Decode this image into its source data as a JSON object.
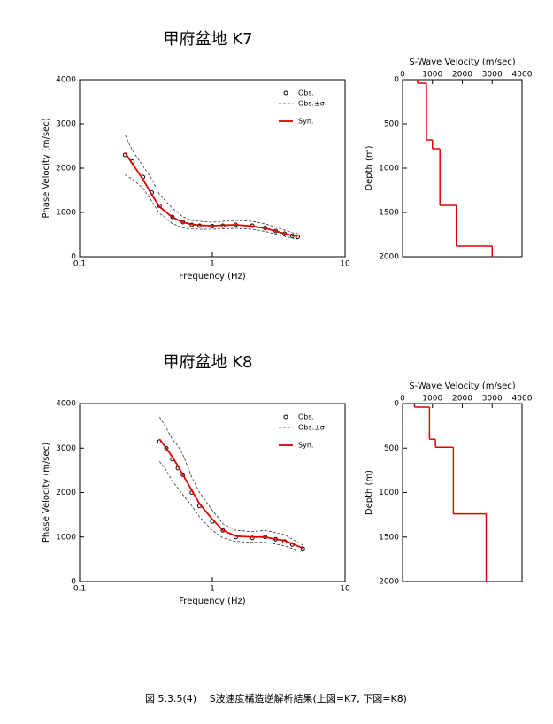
{
  "chart_data": [
    {
      "type": "line",
      "title": "甲府盆地 K7",
      "xlabel": "Frequency (Hz)",
      "ylabel": "Phase Velocity (m/sec)",
      "xscale": "log",
      "xlim": [
        0.1,
        10
      ],
      "xticks": [
        0.1,
        1,
        10
      ],
      "ylim": [
        0,
        4000
      ],
      "yticks": [
        0,
        1000,
        2000,
        3000,
        4000
      ],
      "legend": "upper right",
      "x": [
        0.22,
        0.25,
        0.3,
        0.35,
        0.4,
        0.5,
        0.6,
        0.7,
        0.8,
        1,
        1.2,
        1.5,
        2,
        2.5,
        3,
        3.5,
        4,
        4.4
      ],
      "series": [
        {
          "name": "Obs.",
          "marker": "circle",
          "color": "#000000",
          "values": [
            2300,
            2150,
            1800,
            1450,
            1150,
            900,
            780,
            720,
            700,
            690,
            700,
            720,
            700,
            650,
            580,
            520,
            470,
            450
          ]
        },
        {
          "name": "Obs.±σ",
          "dash": true,
          "color": "#333333",
          "upper": [
            2750,
            2400,
            2050,
            1750,
            1400,
            1100,
            900,
            820,
            800,
            780,
            800,
            820,
            800,
            740,
            670,
            600,
            540,
            520
          ],
          "lower": [
            1850,
            1750,
            1550,
            1250,
            980,
            750,
            650,
            630,
            620,
            620,
            630,
            640,
            620,
            570,
            510,
            460,
            420,
            400
          ]
        },
        {
          "name": "Syn.",
          "color": "#e00000",
          "values": [
            2350,
            2100,
            1750,
            1400,
            1130,
            890,
            780,
            730,
            710,
            700,
            710,
            720,
            690,
            640,
            580,
            520,
            480,
            460
          ]
        }
      ]
    },
    {
      "type": "step",
      "xlabel": "S-Wave Velocity (m/sec)",
      "ylabel": "Depth (m)",
      "x_axis_position": "top",
      "xlim": [
        0,
        4000
      ],
      "xticks": [
        0,
        1000,
        2000,
        3000,
        4000
      ],
      "ylim": [
        2000,
        0
      ],
      "yticks": [
        0,
        500,
        1000,
        1500,
        2000
      ],
      "color": "#e00000",
      "velocity": [
        500,
        800,
        1000,
        1250,
        1800,
        3000
      ],
      "top_depth": [
        0,
        40,
        680,
        780,
        1420,
        1880
      ]
    },
    {
      "type": "line",
      "title": "甲府盆地 K8",
      "xlabel": "Frequency (Hz)",
      "ylabel": "Phase Velocity (m/sec)",
      "xscale": "log",
      "xlim": [
        0.1,
        10
      ],
      "xticks": [
        0.1,
        1,
        10
      ],
      "ylim": [
        0,
        4000
      ],
      "yticks": [
        0,
        1000,
        2000,
        3000,
        4000
      ],
      "legend": "upper right",
      "x": [
        0.4,
        0.45,
        0.5,
        0.55,
        0.6,
        0.7,
        0.8,
        1,
        1.2,
        1.5,
        2,
        2.5,
        3,
        3.5,
        4,
        4.8
      ],
      "series": [
        {
          "name": "Obs.",
          "marker": "circle",
          "color": "#000000",
          "values": [
            3150,
            3000,
            2750,
            2550,
            2400,
            2000,
            1700,
            1350,
            1150,
            1000,
            980,
            1000,
            950,
            900,
            830,
            740
          ]
        },
        {
          "name": "Obs.±σ",
          "dash": true,
          "color": "#333333",
          "upper": [
            3700,
            3450,
            3200,
            3050,
            2850,
            2350,
            2000,
            1600,
            1300,
            1150,
            1120,
            1150,
            1100,
            1050,
            950,
            820
          ],
          "lower": [
            2700,
            2500,
            2250,
            2100,
            1950,
            1700,
            1450,
            1150,
            980,
            900,
            880,
            880,
            840,
            800,
            740,
            660
          ]
        },
        {
          "name": "Syn.",
          "color": "#e00000",
          "values": [
            3200,
            3000,
            2800,
            2600,
            2400,
            2050,
            1750,
            1400,
            1150,
            1020,
            1000,
            1000,
            950,
            920,
            850,
            750
          ]
        }
      ]
    },
    {
      "type": "step",
      "xlabel": "S-Wave Velocity (m/sec)",
      "ylabel": "Depth (m)",
      "x_axis_position": "top",
      "xlim": [
        0,
        4000
      ],
      "xticks": [
        0,
        1000,
        2000,
        3000,
        4000
      ],
      "ylim": [
        2000,
        0
      ],
      "yticks": [
        0,
        500,
        1000,
        1500,
        2000
      ],
      "color": "#e00000",
      "velocity": [
        400,
        900,
        1100,
        1700,
        2800
      ],
      "top_depth": [
        0,
        40,
        400,
        490,
        1240
      ]
    }
  ],
  "caption": "図 5.3.5(4)　 S波速度構造逆解析結果(上図=K7, 下図=K8)"
}
